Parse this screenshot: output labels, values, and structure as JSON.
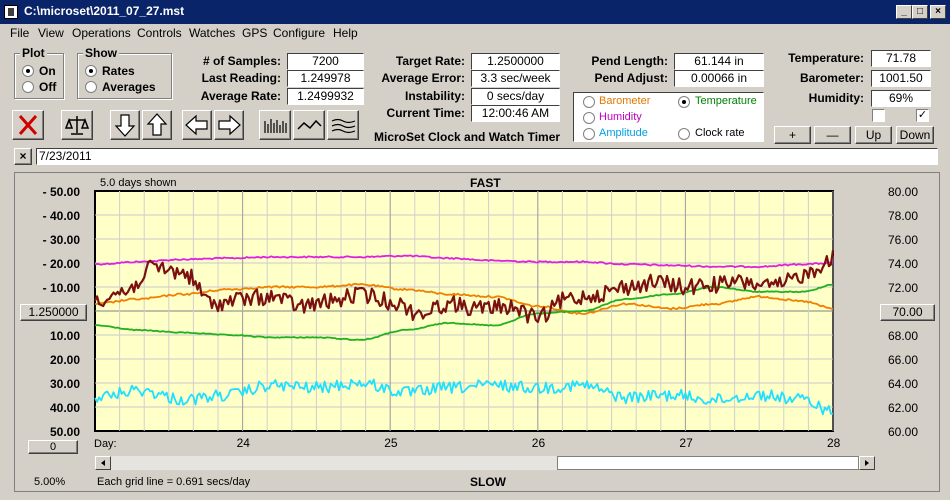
{
  "window": {
    "title": "C:\\microset\\2011_07_27.mst"
  },
  "menu": [
    "File",
    "View",
    "Operations",
    "Controls",
    "Watches",
    "GPS",
    "Configure",
    "Help"
  ],
  "plot_group": {
    "title": "Plot",
    "on": "On",
    "off": "Off",
    "selected": "On"
  },
  "show_group": {
    "title": "Show",
    "rates": "Rates",
    "averages": "Averages",
    "selected": "Rates"
  },
  "stats": {
    "samples_label": "# of Samples:",
    "samples": "7200",
    "last_label": "Last Reading:",
    "last": "1.249978",
    "avg_label": "Average Rate:",
    "avg": "1.2499932"
  },
  "timing": {
    "target_label": "Target Rate:",
    "target": "1.2500000",
    "error_label": "Average Error:",
    "error": "3.3 sec/week",
    "instab_label": "Instability:",
    "instab": "0 secs/day",
    "time_label": "Current Time:",
    "time": "12:00:46 AM",
    "product": "MicroSet Clock and Watch Timer"
  },
  "pendulum": {
    "length_label": "Pend Length:",
    "length": "61.144 in",
    "adjust_label": "Pend Adjust:",
    "adjust": "0.00066 in"
  },
  "overlay_options": {
    "barometer": "Barometer",
    "temperature": "Temperature",
    "humidity": "Humidity",
    "amplitude": "Amplitude",
    "clock_rate": "Clock rate",
    "selected": "Temperature",
    "colors": {
      "barometer": "#e07800",
      "temperature": "#008000",
      "humidity": "#c000c0",
      "amplitude": "#00a0e0",
      "clock_rate": "#000000"
    }
  },
  "environment": {
    "temp_label": "Temperature:",
    "temp": "71.78",
    "baro_label": "Barometer:",
    "baro": "1001.50",
    "hum_label": "Humidity:",
    "hum": "69%",
    "check1": false,
    "check2": true
  },
  "scale_buttons": {
    "plus": "+",
    "minus": "—",
    "up": "Up",
    "down": "Down"
  },
  "date_field": "7/23/2011",
  "chart_data": {
    "type": "line",
    "top_left_text": "5.0 days shown",
    "top_label": "FAST",
    "bottom_label": "SLOW",
    "left_ticks": [
      "- 50.00",
      "- 40.00",
      "- 30.00",
      "- 20.00",
      "- 10.00",
      "",
      "10.00",
      "20.00",
      "30.00",
      "40.00",
      "50.00"
    ],
    "center_rate": "1.250000",
    "right_ticks": [
      "80.00",
      "78.00",
      "76.00",
      "74.00",
      "72.00",
      "",
      "68.00",
      "66.00",
      "64.00",
      "62.00",
      "60.00"
    ],
    "center_temp": "70.00",
    "x_prefix": "Day:",
    "x_labels": [
      "24",
      "25",
      "26",
      "27",
      "28"
    ],
    "x_days": [
      23.0,
      28.0
    ],
    "left_ylim": [
      50,
      -50
    ],
    "right_ylim": [
      60,
      80
    ],
    "zero_button": "0",
    "scale_percent": "5.00%",
    "grid_note": "Each grid line = 0.691 secs/day",
    "background": "#ffffc8",
    "series": [
      {
        "name": "Humidity",
        "color": "#e020e0",
        "axis": "left",
        "x": [
          23.0,
          23.3,
          23.6,
          23.9,
          24.2,
          24.5,
          24.8,
          25.1,
          25.4,
          25.7,
          26.0,
          26.3,
          26.6,
          26.9,
          27.2,
          27.5,
          27.8,
          28.0
        ],
        "y": [
          -19.5,
          -20.5,
          -21.5,
          -22,
          -22.5,
          -22.5,
          -22.5,
          -23,
          -22,
          -21,
          -20.5,
          -20.5,
          -19.5,
          -19,
          -18.5,
          -18.5,
          -19.5,
          -20
        ]
      },
      {
        "name": "Barometer",
        "color": "#f08000",
        "axis": "left",
        "x": [
          23.0,
          23.3,
          23.6,
          23.9,
          24.2,
          24.5,
          24.8,
          25.1,
          25.4,
          25.7,
          26.0,
          26.3,
          26.6,
          26.9,
          27.2,
          27.5,
          27.8,
          28.0
        ],
        "y": [
          -3,
          -5,
          -7,
          -9,
          -10,
          -10,
          -11,
          -9,
          -7,
          -6,
          -2,
          1,
          -3,
          -1,
          -3,
          -6,
          -4,
          -1
        ]
      },
      {
        "name": "Temperature",
        "color": "#20b020",
        "axis": "left",
        "x": [
          23.0,
          23.3,
          23.6,
          23.9,
          24.2,
          24.5,
          24.8,
          25.1,
          25.4,
          25.7,
          26.0,
          26.3,
          26.6,
          26.9,
          27.2,
          27.5,
          27.8,
          28.0
        ],
        "y": [
          6,
          8,
          9,
          10,
          11,
          11,
          12,
          8,
          5,
          6,
          1,
          0,
          -5,
          -7,
          -10,
          -8,
          -8,
          -11
        ]
      },
      {
        "name": "Amplitude",
        "color": "#20e0ff",
        "axis": "left",
        "x": [
          23.0,
          23.3,
          23.6,
          23.9,
          24.2,
          24.5,
          24.8,
          25.1,
          25.4,
          25.7,
          26.0,
          26.3,
          26.6,
          26.9,
          27.2,
          27.5,
          27.8,
          28.0
        ],
        "y": [
          36,
          33,
          37,
          35,
          31,
          32,
          30,
          34,
          32,
          31,
          32,
          31,
          36,
          35,
          37,
          35,
          37,
          42
        ]
      },
      {
        "name": "Clock rate",
        "color": "#7a1010",
        "axis": "left",
        "x": [
          23.0,
          23.2,
          23.4,
          23.6,
          23.8,
          24.0,
          24.2,
          24.4,
          24.6,
          24.8,
          25.0,
          25.2,
          25.4,
          25.6,
          25.8,
          26.0,
          26.2,
          26.4,
          26.6,
          26.8,
          27.0,
          27.2,
          27.4,
          27.6,
          27.8,
          28.0
        ],
        "y": [
          -5,
          -8,
          -18,
          -16,
          -3,
          -5,
          -6,
          -2,
          -4,
          -7,
          -4,
          1,
          -3,
          -1,
          -2,
          3,
          -5,
          -7,
          -10,
          -12,
          -10,
          -11,
          -12,
          -10,
          -15,
          -22
        ]
      }
    ]
  }
}
